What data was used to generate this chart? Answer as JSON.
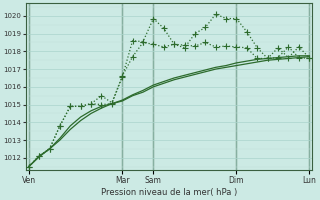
{
  "xlabel": "Pression niveau de la mer( hPa )",
  "bg_color": "#cceae4",
  "grid_major_color": "#aad4cc",
  "grid_minor_color": "#c0e0da",
  "line_color": "#2d6b2d",
  "ylim": [
    1011.3,
    1020.7
  ],
  "yticks": [
    1012,
    1013,
    1014,
    1015,
    1016,
    1017,
    1018,
    1019,
    1020
  ],
  "xtick_labels": [
    "Ven",
    "Mar",
    "Sam",
    "Dim",
    "Lun"
  ],
  "xtick_positions": [
    0,
    9,
    12,
    20,
    27
  ],
  "vline_positions": [
    0,
    9,
    12,
    20,
    27
  ],
  "n_points": 28,
  "series1_x": [
    0,
    1,
    2,
    3,
    4,
    5,
    6,
    7,
    8,
    9,
    10,
    11,
    12,
    13,
    14,
    15,
    16,
    17,
    18,
    19,
    20,
    21,
    22,
    23,
    24,
    25,
    26,
    27
  ],
  "series1_y": [
    1011.5,
    1012.1,
    1012.5,
    1013.8,
    1014.9,
    1014.9,
    1015.05,
    1015.0,
    1015.05,
    1016.55,
    1018.6,
    1018.55,
    1019.85,
    1019.3,
    1018.4,
    1018.2,
    1019.0,
    1019.35,
    1020.1,
    1019.85,
    1019.85,
    1019.1,
    1018.2,
    1017.6,
    1017.65,
    1018.25,
    1017.65,
    1017.6
  ],
  "series2_x": [
    0,
    1,
    2,
    3,
    4,
    5,
    6,
    7,
    8,
    9,
    10,
    11,
    12,
    13,
    14,
    15,
    16,
    17,
    18,
    19,
    20,
    21,
    22,
    23,
    24,
    25,
    26,
    27
  ],
  "series2_y": [
    1011.5,
    1012.1,
    1012.5,
    1013.8,
    1014.9,
    1014.9,
    1015.05,
    1015.5,
    1015.1,
    1016.6,
    1017.7,
    1018.5,
    1018.4,
    1018.25,
    1018.4,
    1018.35,
    1018.3,
    1018.5,
    1018.25,
    1018.3,
    1018.25,
    1018.2,
    1017.6,
    1017.6,
    1018.2,
    1017.65,
    1018.25,
    1017.65
  ],
  "series3_x": [
    0,
    1,
    2,
    3,
    4,
    5,
    6,
    7,
    8,
    9,
    10,
    11,
    12,
    13,
    14,
    15,
    16,
    17,
    18,
    19,
    20,
    21,
    22,
    23,
    24,
    25,
    26,
    27
  ],
  "series3_y": [
    1011.5,
    1012.1,
    1012.5,
    1013.0,
    1013.6,
    1014.1,
    1014.5,
    1014.8,
    1015.05,
    1015.2,
    1015.5,
    1015.7,
    1016.0,
    1016.2,
    1016.4,
    1016.55,
    1016.7,
    1016.85,
    1017.0,
    1017.1,
    1017.2,
    1017.3,
    1017.4,
    1017.5,
    1017.55,
    1017.6,
    1017.65,
    1017.7
  ],
  "series4_x": [
    0,
    1,
    2,
    3,
    4,
    5,
    6,
    7,
    8,
    9,
    10,
    11,
    12,
    13,
    14,
    15,
    16,
    17,
    18,
    19,
    20,
    21,
    22,
    23,
    24,
    25,
    26,
    27
  ],
  "series4_y": [
    1011.5,
    1012.05,
    1012.5,
    1013.1,
    1013.8,
    1014.3,
    1014.65,
    1014.9,
    1015.05,
    1015.25,
    1015.55,
    1015.8,
    1016.1,
    1016.3,
    1016.5,
    1016.65,
    1016.8,
    1016.95,
    1017.1,
    1017.2,
    1017.35,
    1017.45,
    1017.55,
    1017.6,
    1017.65,
    1017.7,
    1017.75,
    1017.75
  ]
}
